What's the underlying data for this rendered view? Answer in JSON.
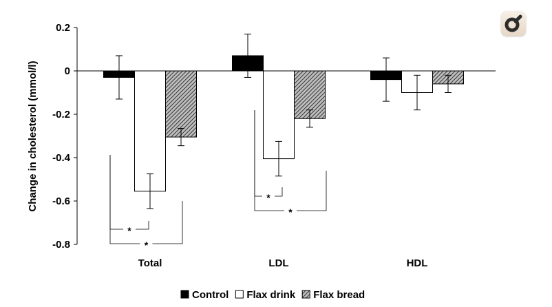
{
  "chart_data": {
    "type": "bar",
    "categories": [
      "Total",
      "LDL",
      "HDL"
    ],
    "ylabel": "Change in cholesterol (mmol/l)",
    "ylim": [
      -0.8,
      0.2
    ],
    "yticks": [
      "0.2",
      "0",
      "-0.2",
      "-0.4",
      "-0.6",
      "-0.8"
    ],
    "legend_position": "bottom",
    "series": [
      {
        "name": "Control",
        "values": [
          -0.03,
          0.07,
          -0.04
        ],
        "errors": [
          0.1,
          0.1,
          0.1
        ],
        "fill": "#000000"
      },
      {
        "name": "Flax drink",
        "values": [
          -0.555,
          -0.405,
          -0.1
        ],
        "errors": [
          0.08,
          0.08,
          0.08
        ],
        "fill": "#ffffff"
      },
      {
        "name": "Flax bread",
        "values": [
          -0.305,
          -0.22,
          -0.06
        ],
        "errors": [
          0.04,
          0.04,
          0.04
        ],
        "fill": "hatch"
      }
    ],
    "significance": [
      {
        "category": "Total",
        "pair": [
          "Control",
          "Flax drink"
        ],
        "label": "*"
      },
      {
        "category": "Total",
        "pair": [
          "Control",
          "Flax bread"
        ],
        "label": "*"
      },
      {
        "category": "LDL",
        "pair": [
          "Control",
          "Flax drink"
        ],
        "label": "*"
      },
      {
        "category": "LDL",
        "pair": [
          "Control",
          "Flax bread"
        ],
        "label": "*"
      }
    ]
  },
  "toolbar": {
    "icon": "magnifier-icon"
  }
}
